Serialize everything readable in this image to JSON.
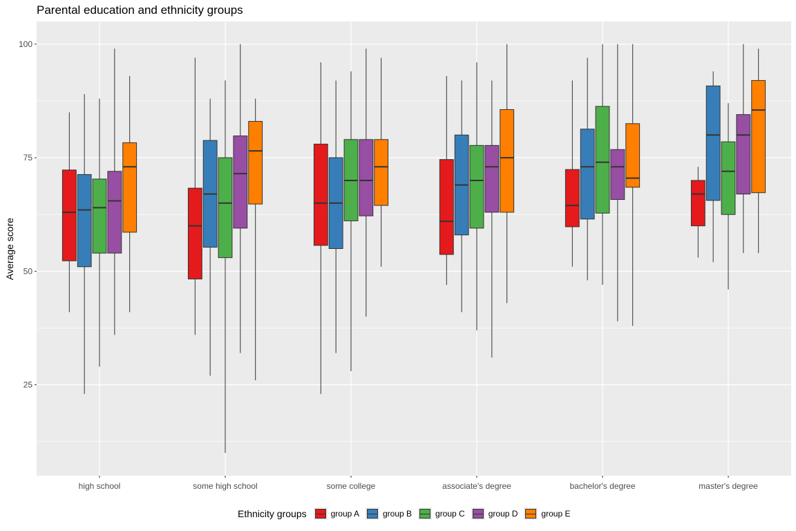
{
  "chart_data": {
    "type": "box",
    "title": "Parental education and ethnicity groups",
    "xlabel": "",
    "ylabel": "Average score",
    "ylim": [
      5,
      105
    ],
    "yticks": [
      25,
      50,
      75,
      100
    ],
    "grid": true,
    "legend_title": "Ethnicity groups",
    "legend_position": "bottom",
    "categories": [
      "high school",
      "some high school",
      "some college",
      "associate's degree",
      "bachelor's degree",
      "master's degree"
    ],
    "series": [
      {
        "name": "group A",
        "color": "#e41a1c",
        "boxes": [
          {
            "min": 41,
            "q1": 52.3,
            "median": 63,
            "q3": 72.3,
            "max": 85
          },
          {
            "min": 36,
            "q1": 48.3,
            "median": 60,
            "q3": 68.3,
            "max": 97
          },
          {
            "min": 23,
            "q1": 55.7,
            "median": 65,
            "q3": 78,
            "max": 96
          },
          {
            "min": 47,
            "q1": 53.7,
            "median": 61,
            "q3": 74.6,
            "max": 93
          },
          {
            "min": 51,
            "q1": 59.8,
            "median": 64.5,
            "q3": 72.4,
            "max": 92
          },
          {
            "min": 53,
            "q1": 60,
            "median": 67,
            "q3": 70,
            "max": 73
          }
        ]
      },
      {
        "name": "group B",
        "color": "#377eb8",
        "boxes": [
          {
            "min": 23,
            "q1": 51,
            "median": 63.5,
            "q3": 71.3,
            "max": 89
          },
          {
            "min": 27,
            "q1": 55.3,
            "median": 67,
            "q3": 78.8,
            "max": 88
          },
          {
            "min": 32,
            "q1": 55,
            "median": 65,
            "q3": 75,
            "max": 92
          },
          {
            "min": 41,
            "q1": 58,
            "median": 69,
            "q3": 80,
            "max": 92
          },
          {
            "min": 48,
            "q1": 61.5,
            "median": 73,
            "q3": 81.3,
            "max": 97
          },
          {
            "min": 52,
            "q1": 65.6,
            "median": 80,
            "q3": 90.8,
            "max": 94
          }
        ]
      },
      {
        "name": "group C",
        "color": "#4daf4a",
        "boxes": [
          {
            "min": 29,
            "q1": 54,
            "median": 64,
            "q3": 70.3,
            "max": 88
          },
          {
            "min": 10,
            "q1": 53,
            "median": 65,
            "q3": 75,
            "max": 92
          },
          {
            "min": 28,
            "q1": 61.1,
            "median": 70,
            "q3": 79,
            "max": 94
          },
          {
            "min": 37,
            "q1": 59.5,
            "median": 70,
            "q3": 77.7,
            "max": 96
          },
          {
            "min": 47,
            "q1": 62.8,
            "median": 74,
            "q3": 86.3,
            "max": 100
          },
          {
            "min": 46,
            "q1": 62.5,
            "median": 72,
            "q3": 78.5,
            "max": 87
          }
        ]
      },
      {
        "name": "group D",
        "color": "#984ea3",
        "boxes": [
          {
            "min": 36,
            "q1": 54,
            "median": 65.5,
            "q3": 72,
            "max": 99
          },
          {
            "min": 32,
            "q1": 59.5,
            "median": 71.5,
            "q3": 79.8,
            "max": 100
          },
          {
            "min": 40,
            "q1": 62.2,
            "median": 70,
            "q3": 79,
            "max": 99
          },
          {
            "min": 31,
            "q1": 63,
            "median": 73,
            "q3": 77.7,
            "max": 92
          },
          {
            "min": 39,
            "q1": 65.8,
            "median": 73,
            "q3": 76.8,
            "max": 100
          },
          {
            "min": 54,
            "q1": 67,
            "median": 80,
            "q3": 84.5,
            "max": 100
          }
        ]
      },
      {
        "name": "group E",
        "color": "#ff7f00",
        "boxes": [
          {
            "min": 41,
            "q1": 58.6,
            "median": 73,
            "q3": 78.3,
            "max": 93
          },
          {
            "min": 26,
            "q1": 64.8,
            "median": 76.5,
            "q3": 83,
            "max": 88
          },
          {
            "min": 51,
            "q1": 64.5,
            "median": 73,
            "q3": 79,
            "max": 97
          },
          {
            "min": 43,
            "q1": 63,
            "median": 75,
            "q3": 85.6,
            "max": 100
          },
          {
            "min": 38,
            "q1": 68.5,
            "median": 70.5,
            "q3": 82.5,
            "max": 100
          },
          {
            "min": 54,
            "q1": 67.3,
            "median": 85.5,
            "q3": 92,
            "max": 99
          }
        ]
      }
    ]
  }
}
